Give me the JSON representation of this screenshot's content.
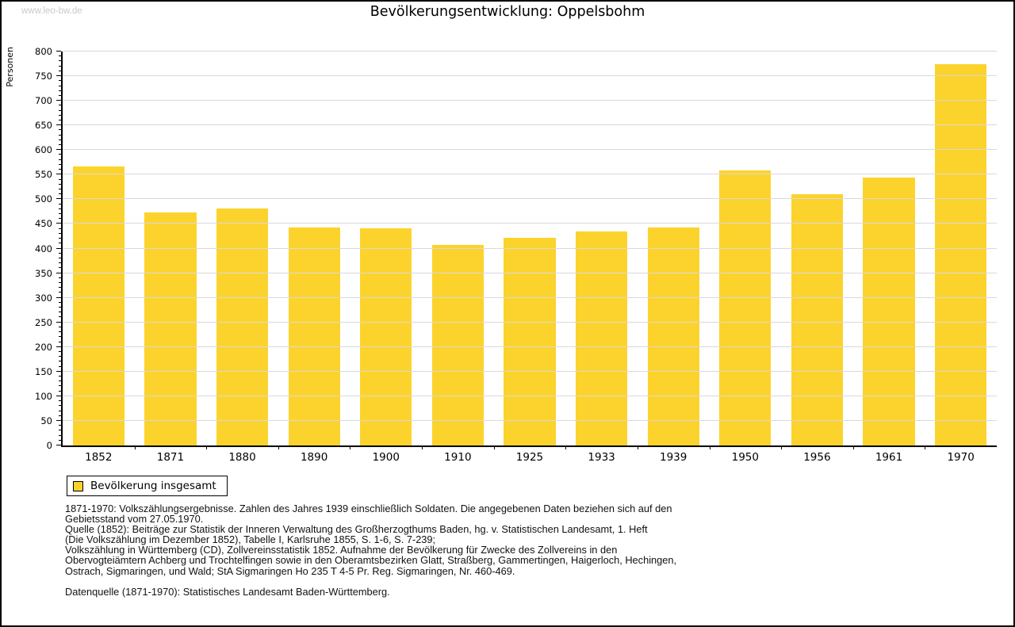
{
  "page": {
    "watermark": "www.leo-bw.de",
    "title": "Bevölkerungsentwicklung: Oppelsbohm"
  },
  "chart_data": {
    "type": "bar",
    "title": "Bevölkerungsentwicklung: Oppelsbohm",
    "xlabel": "",
    "ylabel": "Personen",
    "ylim": [
      0,
      800
    ],
    "ytick_step": 50,
    "ytick_minor_step": 10,
    "grid": true,
    "legend_position": "bottom-left",
    "categories": [
      "1852",
      "1871",
      "1880",
      "1890",
      "1900",
      "1910",
      "1925",
      "1933",
      "1939",
      "1950",
      "1956",
      "1961",
      "1970"
    ],
    "series": [
      {
        "name": "Bevölkerung insgesamt",
        "values": [
          566,
          474,
          481,
          443,
          441,
          407,
          421,
          435,
          443,
          559,
          510,
          544,
          774
        ]
      }
    ],
    "bar_color": "#fcd32d",
    "grid_color": "#d9d9d9",
    "axis_color": "#000000"
  },
  "legend": {
    "label": "Bevölkerung insgesamt",
    "swatch_color": "#fcd32d"
  },
  "notes": {
    "lines": [
      "1871-1970: Volkszählungsergebnisse. Zahlen des Jahres 1939 einschließlich Soldaten. Die angegebenen Daten beziehen sich auf den",
      "Gebietsstand vom 27.05.1970.",
      "Quelle (1852): Beiträge zur Statistik der Inneren Verwaltung des Großherzogthums Baden, hg. v. Statistischen Landesamt, 1. Heft",
      "(Die Volkszählung im Dezember 1852), Tabelle I, Karlsruhe 1855, S. 1-6, S. 7-239;",
      "Volkszählung in Württemberg (CD), Zollvereinsstatistik 1852. Aufnahme der Bevölkerung für Zwecke des Zollvereins in den",
      "Obervogteiämtern Achberg und Trochtelfingen sowie in den Oberamtsbezirken Glatt, Straßberg, Gammertingen, Haigerloch, Hechingen,",
      "Ostrach, Sigmaringen, und Wald; StA Sigmaringen Ho 235 T 4-5 Pr. Reg. Sigmaringen, Nr. 460-469."
    ],
    "datasource": "Datenquelle (1871-1970): Statistisches Landesamt Baden-Württemberg."
  }
}
